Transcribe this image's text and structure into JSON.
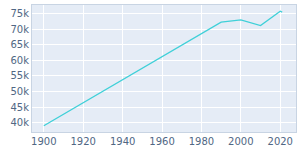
{
  "chart_data": {
    "type": "line",
    "x": [
      1900,
      1990,
      2000,
      2010,
      2020,
      2021
    ],
    "values": [
      39000,
      72300,
      73000,
      71200,
      75800,
      75500
    ],
    "color": "#3fd0d8",
    "xlim": [
      1894,
      2028
    ],
    "xticks": [
      1900,
      1920,
      1940,
      1960,
      1980,
      2000,
      2020
    ],
    "ylim": [
      37000,
      77800
    ],
    "yticks": [
      {
        "value": 40000,
        "label": "40k"
      },
      {
        "value": 45000,
        "label": "45k"
      },
      {
        "value": 50000,
        "label": "50k"
      },
      {
        "value": 55000,
        "label": "55k"
      },
      {
        "value": 60000,
        "label": "60k"
      },
      {
        "value": 65000,
        "label": "65k"
      },
      {
        "value": 70000,
        "label": "70k"
      },
      {
        "value": 75000,
        "label": "75k"
      }
    ],
    "grid": true
  }
}
